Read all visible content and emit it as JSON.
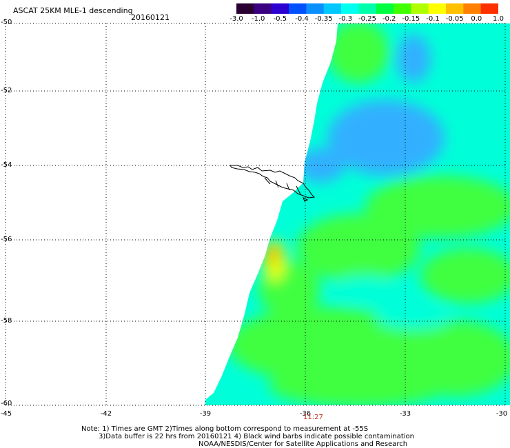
{
  "header": {
    "title": "ASCAT 25KM MLE-1 descending",
    "date": "20160121"
  },
  "colorbar": {
    "colors": [
      "#2a0033",
      "#3a0080",
      "#2b00d0",
      "#0050ff",
      "#0a8fff",
      "#00c8ff",
      "#00ffee",
      "#00ffaa",
      "#00ff40",
      "#40ff00",
      "#b0ff00",
      "#ffff00",
      "#ffc000",
      "#ff8000",
      "#ff3000"
    ],
    "tick_labels": [
      "-3.0",
      "-1.0",
      "-0.5",
      "-0.4",
      "-0.35",
      "-0.3",
      "-0.25",
      "-0.2",
      "-0.15",
      "-0.1",
      "-0.05",
      "0.0",
      "1.0"
    ]
  },
  "axes": {
    "lon_labels": [
      "-45",
      "-42",
      "-39",
      "-36",
      "-33",
      "-30"
    ],
    "lat_labels": [
      "-50",
      "-52",
      "-54",
      "-56",
      "-58",
      "-60"
    ]
  },
  "pass_time": "11:27",
  "notes": [
    "Note: 1) Times are GMT 2)Times along bottom correspond to measurement at -55S",
    "3)Data buffer is 22 hrs from 20160121 4) Black wind barbs indicate possible contamination",
    "NOAA/NESDIS/Center for Satellite Applications and Research"
  ],
  "field_colors": {
    "cyan": "#00ffd8",
    "green": "#40ff40",
    "green_dark": "#10ee30",
    "blue": "#30b0ff",
    "blue_deep": "#1a6cff",
    "yellow": "#eaff00",
    "orange": "#ff9a00"
  }
}
